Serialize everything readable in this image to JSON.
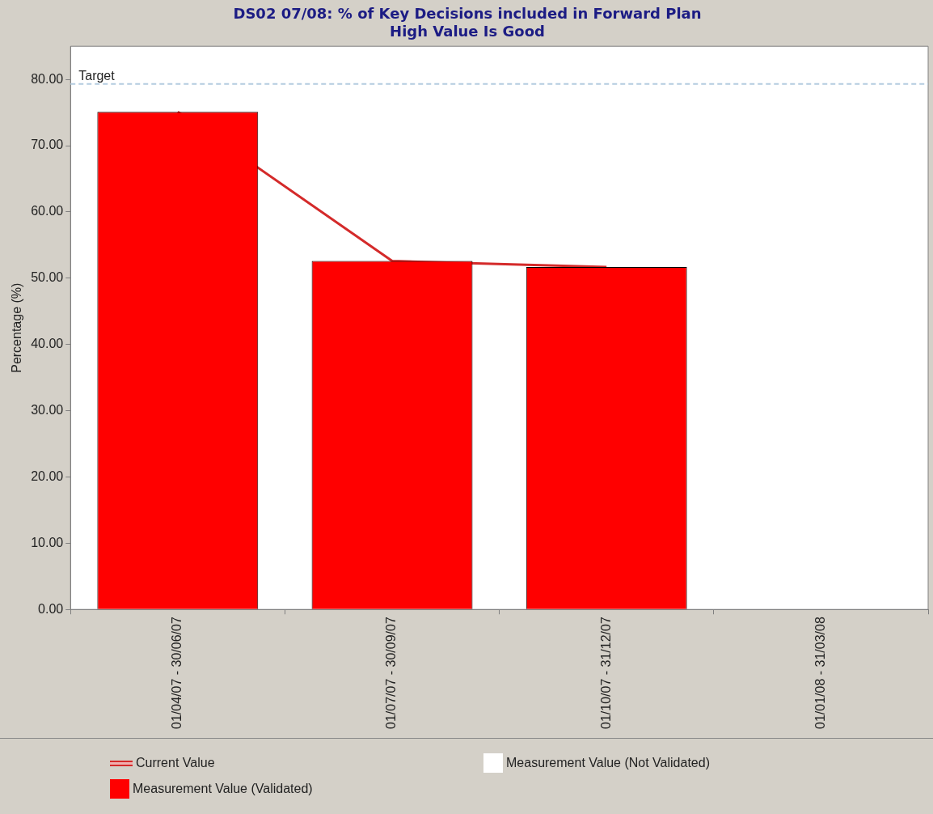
{
  "chart_data": {
    "type": "bar",
    "title": [
      "DS02 07/08: % of Key Decisions included in Forward Plan",
      "High Value Is Good"
    ],
    "ylabel": "Percentage (%)",
    "categories": [
      "01/04/07 - 30/06/07",
      "01/07/07 - 30/09/07",
      "01/10/07 - 31/12/07",
      "01/01/08 - 31/03/08"
    ],
    "series": [
      {
        "name": "Current Value",
        "type": "line",
        "color": "#d42a2a",
        "values": [
          75.1,
          52.6,
          51.7,
          null
        ]
      },
      {
        "name": "Measurement Value (Not Validated)",
        "color": "#ffffff",
        "values": [
          null,
          null,
          null,
          null
        ]
      },
      {
        "name": "Measurement Value (Validated)",
        "color": "#ff0000",
        "values": [
          75.1,
          52.6,
          51.7,
          null
        ]
      }
    ],
    "ylim": [
      0,
      85
    ],
    "yticks": [
      {
        "value": 0,
        "label": "0.00"
      },
      {
        "value": 10,
        "label": "10.00"
      },
      {
        "value": 20,
        "label": "20.00"
      },
      {
        "value": 30,
        "label": "30.00"
      },
      {
        "value": 40,
        "label": "40.00"
      },
      {
        "value": 50,
        "label": "50.00"
      },
      {
        "value": 60,
        "label": "60.00"
      },
      {
        "value": 70,
        "label": "70.00"
      },
      {
        "value": 80,
        "label": "80.00"
      }
    ],
    "ref_lines": [
      {
        "axis": "y",
        "value": 79.3,
        "label": "Target",
        "color": "#b4cce0",
        "line_style": "dashed"
      }
    ],
    "grid": false,
    "legend": "bottom",
    "marker": "none"
  }
}
